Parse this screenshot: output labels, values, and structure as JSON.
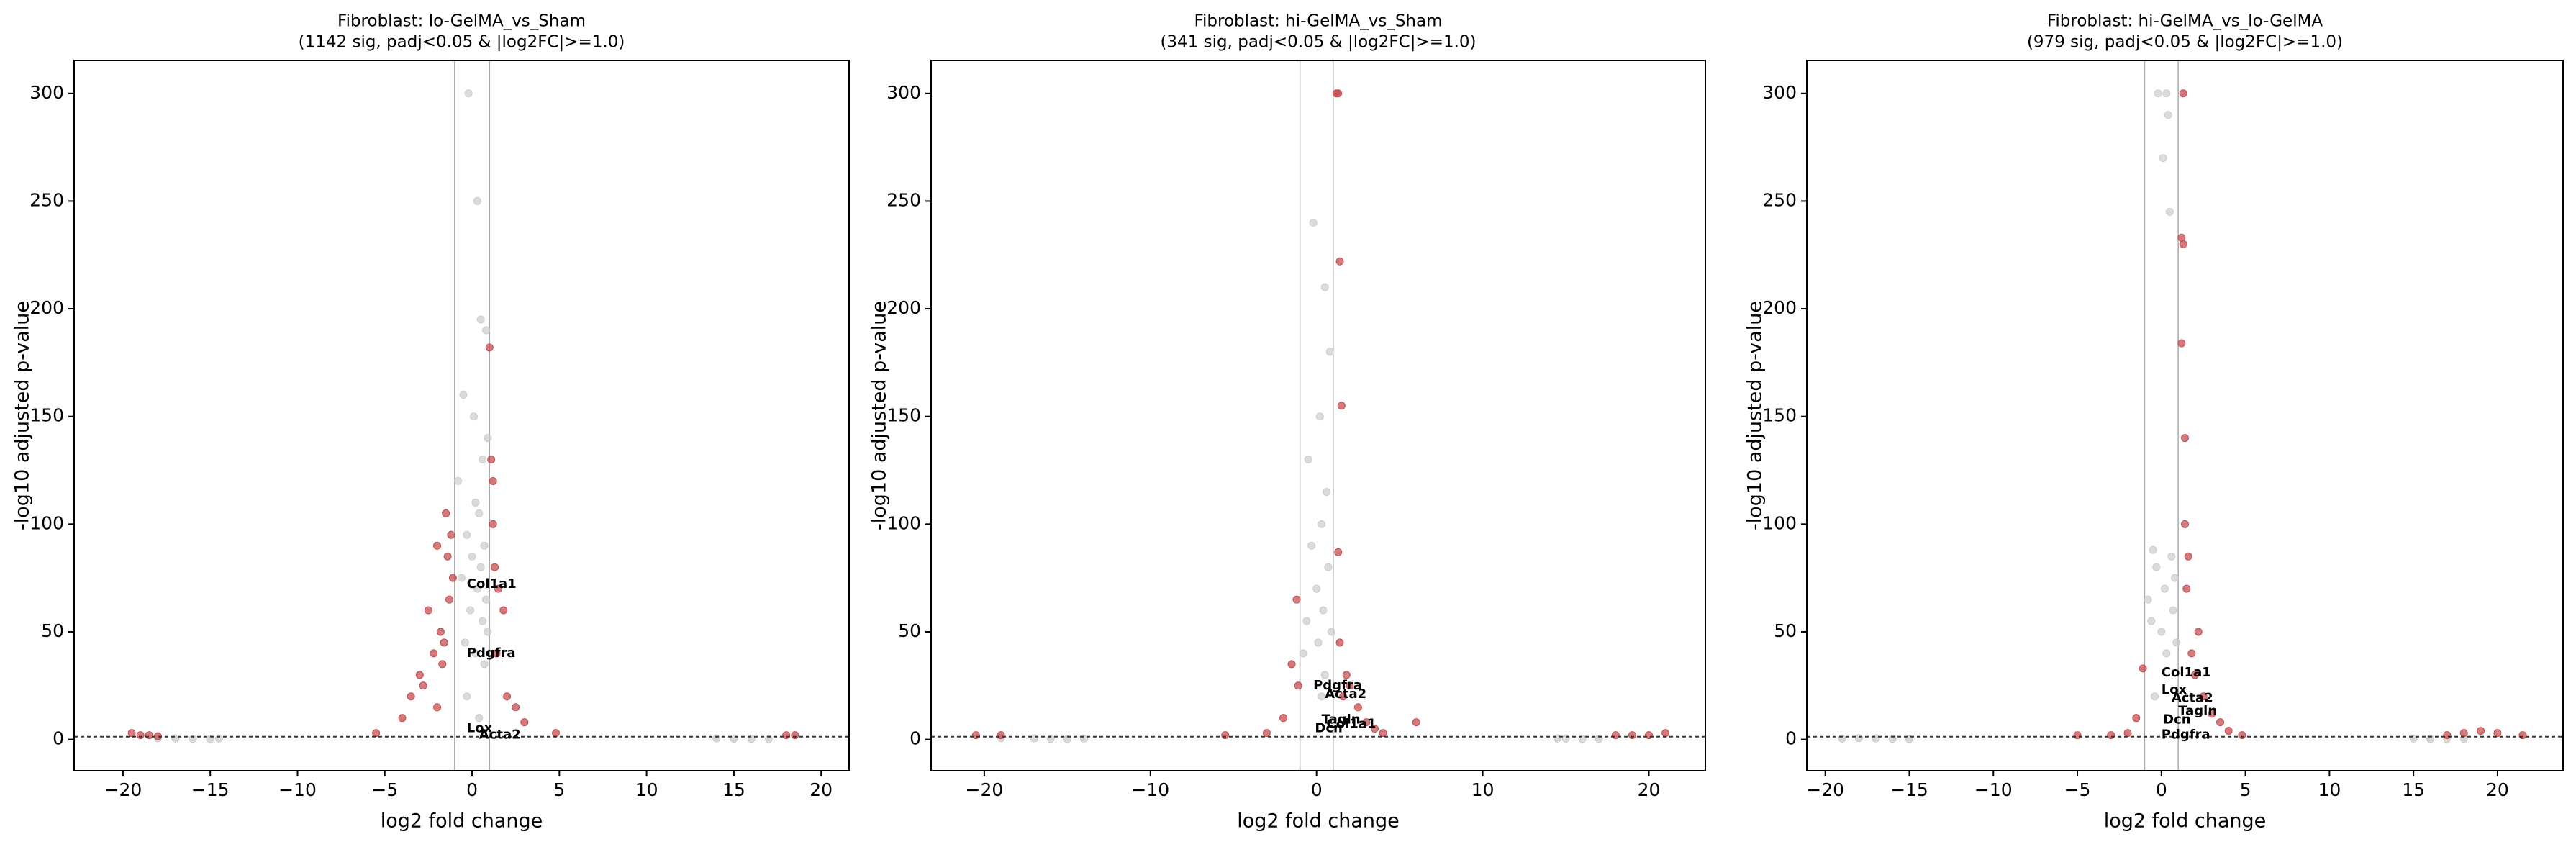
{
  "chart_data": [
    {
      "type": "scatter",
      "title": "Fibroblast: lo-GelMA_vs_Sham",
      "subtitle": "(1142 sig, padj<0.05 & |log2FC|>=1.0)",
      "xlabel": "log2 fold change",
      "ylabel": "-log10 adjusted p-value",
      "xlim": [
        -22.8,
        21.6
      ],
      "ylim": [
        -14.5,
        315.3
      ],
      "xticks": [
        {
          "value": -20,
          "label": "−20"
        },
        {
          "value": -15,
          "label": "−15"
        },
        {
          "value": -10,
          "label": "−10"
        },
        {
          "value": -5,
          "label": "−5"
        },
        0,
        5,
        10,
        15,
        20
      ],
      "yticks": [
        0,
        50,
        100,
        150,
        200,
        250,
        300
      ],
      "vlines": [
        -1,
        1
      ],
      "hline": 1.3,
      "series": [
        {
          "color": "#cccccc",
          "x": [
            -0.2,
            0.3,
            0.5,
            0.8,
            -0.5,
            0.1,
            0.9,
            0.6,
            -0.8,
            0.2,
            0.4,
            -0.3,
            0.7,
            0.0,
            0.5,
            -0.6,
            0.3,
            0.8,
            -0.1,
            0.6,
            0.9,
            -0.4,
            0.2,
            0.7,
            -17,
            -16,
            -15,
            -14.5,
            -18,
            15,
            16,
            17,
            14,
            -0.3,
            0.4
          ],
          "values": [
            300,
            250,
            195,
            190,
            160,
            150,
            140,
            130,
            120,
            110,
            105,
            95,
            90,
            85,
            80,
            75,
            70,
            65,
            60,
            55,
            50,
            45,
            40,
            35,
            0.5,
            0.3,
            0.2,
            0.4,
            0.6,
            0.4,
            0.3,
            0.2,
            0.5,
            20,
            10
          ]
        },
        {
          "color": "#c44e52",
          "x": [
            1.0,
            1.1,
            1.2,
            1.3,
            1.5,
            -1.5,
            -2,
            -2.5,
            -3,
            -1.2,
            -1.8,
            -2.2,
            -3.5,
            -4,
            -5.5,
            -1.1,
            -1.4,
            -2.8,
            -1.6,
            2,
            2.5,
            3,
            4.8,
            1.8,
            1.4,
            -19.5,
            -19,
            -18.5,
            -18,
            18,
            18.5,
            -1.3,
            -2.0,
            -1.7,
            1.2
          ],
          "values": [
            182,
            130,
            100,
            80,
            70,
            105,
            90,
            60,
            30,
            95,
            50,
            40,
            20,
            10,
            3,
            75,
            85,
            25,
            45,
            20,
            15,
            8,
            3,
            60,
            40,
            3,
            2,
            2,
            1.5,
            2,
            2,
            65,
            15,
            35,
            120
          ]
        }
      ],
      "annotations": [
        {
          "text": "Col1a1",
          "x": -0.3,
          "y": 72
        },
        {
          "text": "Pdgfra",
          "x": -0.3,
          "y": 40
        },
        {
          "text": "Lox",
          "x": -0.3,
          "y": 5
        },
        {
          "text": "Acta2",
          "x": 0.4,
          "y": 2
        }
      ]
    },
    {
      "type": "scatter",
      "title": "Fibroblast: hi-GelMA_vs_Sham",
      "subtitle": "(341 sig, padj<0.05 & |log2FC|>=1.0)",
      "xlabel": "log2 fold change",
      "ylabel": "-log10 adjusted p-value",
      "xlim": [
        -23.2,
        23.4
      ],
      "ylim": [
        -14.5,
        315.3
      ],
      "xticks": [
        {
          "value": -20,
          "label": "−20"
        },
        {
          "value": -10,
          "label": "−10"
        },
        0,
        10,
        20
      ],
      "yticks": [
        0,
        50,
        100,
        150,
        200,
        250,
        300
      ],
      "vlines": [
        -1,
        1
      ],
      "hline": 1.3,
      "series": [
        {
          "color": "#cccccc",
          "x": [
            -0.2,
            0.5,
            0.8,
            0.2,
            -0.5,
            0.6,
            0.3,
            -0.3,
            0.7,
            0.0,
            0.4,
            -0.6,
            0.9,
            0.1,
            -0.8,
            0.5,
            -17,
            -16,
            -15,
            -14,
            -19,
            15,
            17,
            16,
            14.5,
            0.3
          ],
          "values": [
            240,
            210,
            180,
            150,
            130,
            115,
            100,
            90,
            80,
            70,
            60,
            55,
            50,
            45,
            40,
            30,
            0.5,
            0.3,
            0.2,
            0.4,
            0.6,
            0.4,
            0.3,
            0.2,
            0.5,
            20
          ]
        },
        {
          "color": "#c44e52",
          "x": [
            1.2,
            1.3,
            1.4,
            1.5,
            1.3,
            1.4,
            -1.2,
            -1.5,
            -2,
            2,
            2.5,
            3,
            3.5,
            4,
            6,
            -5.5,
            -3,
            -20.5,
            -19,
            18,
            19,
            20,
            21,
            1.6,
            1.8,
            -1.1
          ],
          "values": [
            300,
            300,
            222,
            155,
            87,
            45,
            65,
            35,
            10,
            25,
            15,
            8,
            5,
            3,
            8,
            2,
            3,
            2,
            2,
            2,
            2,
            2,
            3,
            20,
            30,
            25
          ]
        }
      ],
      "annotations": [
        {
          "text": "Pdgfra",
          "x": -0.2,
          "y": 25
        },
        {
          "text": "Acta2",
          "x": 0.5,
          "y": 21
        },
        {
          "text": "Tagln",
          "x": 0.3,
          "y": 9
        },
        {
          "text": "Col1a1",
          "x": 0.6,
          "y": 7
        },
        {
          "text": "Dcn",
          "x": -0.1,
          "y": 5
        }
      ]
    },
    {
      "type": "scatter",
      "title": "Fibroblast: hi-GelMA_vs_lo-GelMA",
      "subtitle": "(979 sig, padj<0.05 & |log2FC|>=1.0)",
      "xlabel": "log2 fold change",
      "ylabel": "-log10 adjusted p-value",
      "xlim": [
        -21.1,
        23.9
      ],
      "ylim": [
        -14.5,
        315.3
      ],
      "xticks": [
        {
          "value": -20,
          "label": "−20"
        },
        {
          "value": -15,
          "label": "−15"
        },
        {
          "value": -10,
          "label": "−10"
        },
        {
          "value": -5,
          "label": "−5"
        },
        0,
        5,
        10,
        15,
        20
      ],
      "yticks": [
        0,
        50,
        100,
        150,
        200,
        250,
        300
      ],
      "vlines": [
        -1,
        1
      ],
      "hline": 1.3,
      "series": [
        {
          "color": "#cccccc",
          "x": [
            -0.2,
            0.3,
            0.4,
            0.1,
            0.5,
            -0.5,
            0.6,
            -0.3,
            0.8,
            0.2,
            -0.8,
            0.7,
            -0.6,
            0.0,
            0.9,
            0.3,
            -17,
            -16,
            -15,
            -19,
            -18,
            15,
            16,
            17,
            18,
            -0.4
          ],
          "values": [
            300,
            300,
            290,
            270,
            245,
            88,
            85,
            80,
            75,
            70,
            65,
            60,
            55,
            50,
            45,
            40,
            0.5,
            0.3,
            0.2,
            0.4,
            0.6,
            0.4,
            0.3,
            0.2,
            0.3,
            20
          ]
        },
        {
          "color": "#c44e52",
          "x": [
            1.3,
            1.2,
            1.3,
            1.2,
            1.4,
            1.6,
            1.5,
            2.2,
            1.8,
            2,
            2.5,
            3,
            3.5,
            4,
            4.8,
            -1.1,
            -1.5,
            -2,
            -3,
            -5,
            17,
            18,
            19,
            20,
            21.5,
            1.4
          ],
          "values": [
            300,
            233,
            230,
            184,
            140,
            85,
            70,
            50,
            40,
            30,
            20,
            12,
            8,
            4,
            2,
            33,
            10,
            3,
            2,
            2,
            2,
            3,
            4,
            3,
            2,
            100
          ]
        }
      ],
      "annotations": [
        {
          "text": "Col1a1",
          "x": 0,
          "y": 31
        },
        {
          "text": "Lox",
          "x": 0,
          "y": 23
        },
        {
          "text": "Acta2",
          "x": 0.6,
          "y": 19
        },
        {
          "text": "Tagln",
          "x": 1.0,
          "y": 13
        },
        {
          "text": "Dcn",
          "x": 0.1,
          "y": 9
        },
        {
          "text": "Pdgfra",
          "x": 0,
          "y": 2
        }
      ]
    }
  ]
}
